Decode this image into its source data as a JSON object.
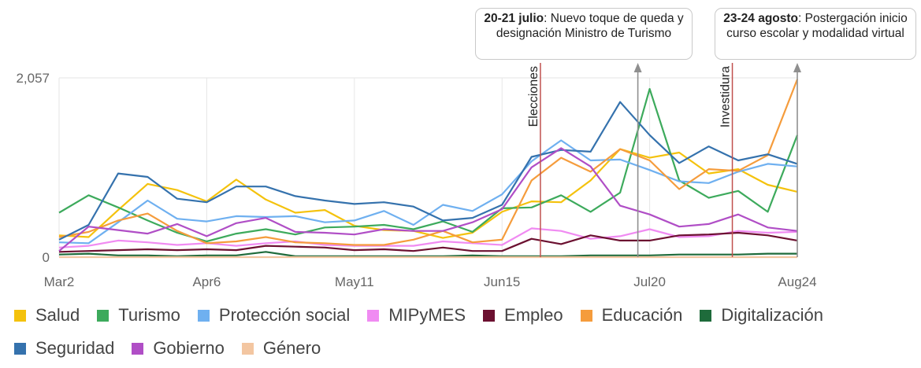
{
  "chart_data": {
    "type": "line",
    "x": [
      "Mar2",
      "Mar9",
      "Mar16",
      "Mar23",
      "Mar30",
      "Apr6",
      "Apr13",
      "Apr20",
      "Apr27",
      "May4",
      "May11",
      "May18",
      "May25",
      "Jun1",
      "Jun8",
      "Jun15",
      "Jun22",
      "Jun29",
      "Jul6",
      "Jul13",
      "Jul20",
      "Jul27",
      "Aug3",
      "Aug10",
      "Aug17",
      "Aug24"
    ],
    "x_tick_labels": [
      "Mar2",
      "Apr6",
      "May11",
      "Jun15",
      "Jul20",
      "Aug24"
    ],
    "y_tick_labels": [
      "0",
      "2,057"
    ],
    "ylim": [
      0,
      2057
    ],
    "grid": true,
    "legend_placement": "bottom",
    "series": [
      {
        "name": "Salud",
        "color": "#f4c20d",
        "values": [
          250,
          230,
          540,
          840,
          770,
          640,
          890,
          660,
          510,
          540,
          360,
          310,
          300,
          220,
          280,
          520,
          640,
          630,
          880,
          1240,
          1140,
          1200,
          960,
          1010,
          830,
          750
        ]
      },
      {
        "name": "Turismo",
        "color": "#3daa5c",
        "values": [
          510,
          710,
          570,
          420,
          280,
          180,
          270,
          320,
          260,
          340,
          350,
          370,
          320,
          410,
          290,
          560,
          570,
          710,
          520,
          740,
          1930,
          880,
          680,
          760,
          520,
          1400
        ]
      },
      {
        "name": "Protección social",
        "color": "#6fb0f0",
        "values": [
          170,
          160,
          400,
          650,
          440,
          410,
          470,
          460,
          470,
          400,
          420,
          530,
          370,
          600,
          530,
          720,
          1100,
          1340,
          1110,
          1120,
          1000,
          870,
          850,
          980,
          1070,
          1040
        ]
      },
      {
        "name": "MIPyMES",
        "color": "#f08bf2",
        "values": [
          110,
          130,
          190,
          170,
          140,
          160,
          130,
          160,
          180,
          140,
          130,
          130,
          130,
          180,
          160,
          140,
          330,
          300,
          210,
          240,
          320,
          230,
          240,
          300,
          280,
          290
        ]
      },
      {
        "name": "Empleo",
        "color": "#6b1030",
        "values": [
          60,
          70,
          80,
          90,
          80,
          90,
          80,
          130,
          120,
          110,
          80,
          90,
          70,
          110,
          70,
          70,
          210,
          150,
          250,
          190,
          190,
          250,
          260,
          280,
          250,
          190
        ]
      },
      {
        "name": "Educación",
        "color": "#f59c3c",
        "values": [
          230,
          290,
          420,
          500,
          300,
          160,
          180,
          230,
          170,
          160,
          140,
          140,
          200,
          300,
          170,
          200,
          880,
          1140,
          980,
          1240,
          1110,
          780,
          1010,
          990,
          1170,
          2040
        ]
      },
      {
        "name": "Digitalización",
        "color": "#1e6b3b",
        "values": [
          30,
          40,
          20,
          20,
          10,
          20,
          20,
          60,
          10,
          10,
          10,
          10,
          10,
          10,
          20,
          10,
          10,
          10,
          20,
          20,
          20,
          30,
          30,
          30,
          40,
          40
        ]
      },
      {
        "name": "Seguridad",
        "color": "#3572ad",
        "values": [
          200,
          370,
          960,
          920,
          670,
          630,
          810,
          810,
          700,
          650,
          610,
          630,
          580,
          420,
          450,
          600,
          1150,
          1230,
          1210,
          1780,
          1400,
          1080,
          1270,
          1110,
          1180,
          1070
        ]
      },
      {
        "name": "Gobierno",
        "color": "#b04ec6",
        "values": [
          70,
          350,
          310,
          270,
          380,
          240,
          390,
          450,
          290,
          280,
          260,
          320,
          300,
          300,
          400,
          550,
          1030,
          1250,
          1040,
          590,
          490,
          350,
          380,
          490,
          340,
          300
        ]
      },
      {
        "name": "Género",
        "color": "#f3c6a1",
        "values": [
          0,
          0,
          0,
          0,
          0,
          0,
          0,
          0,
          0,
          0,
          0,
          0,
          0,
          0,
          0,
          0,
          0,
          0,
          0,
          0,
          0,
          0,
          0,
          0,
          0,
          0
        ]
      }
    ],
    "event_lines": [
      {
        "label": "Elecciones",
        "x_index": 16.3,
        "color": "#c0504d"
      },
      {
        "label": "Investidura",
        "x_index": 22.8,
        "color": "#c0504d"
      }
    ],
    "event_arrows": [
      {
        "x_index": 19.6,
        "color": "#8f8f8f"
      },
      {
        "x_index": 25,
        "color": "#8f8f8f"
      }
    ],
    "annotations": [
      {
        "bold": "20-21 julio",
        "text": ": Nuevo toque de queda y designación Ministro de Turismo"
      },
      {
        "bold": "23-24 agosto",
        "text": ": Postergación inicio curso escolar y modalidad virtual"
      }
    ]
  }
}
